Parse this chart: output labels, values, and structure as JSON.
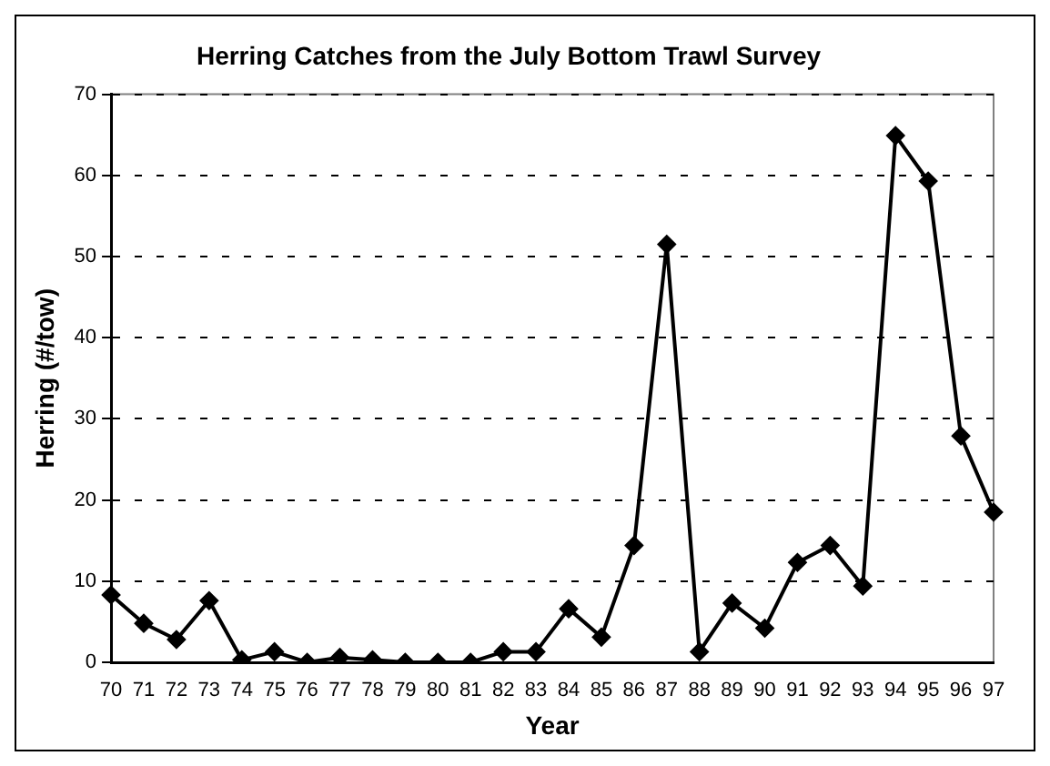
{
  "chart_data": {
    "type": "line",
    "title": "Herring Catches from the July Bottom Trawl Survey",
    "xlabel": "Year",
    "ylabel": "Herring (#/tow)",
    "categories": [
      "70",
      "71",
      "72",
      "73",
      "74",
      "75",
      "76",
      "77",
      "78",
      "79",
      "80",
      "81",
      "82",
      "83",
      "84",
      "85",
      "86",
      "87",
      "88",
      "89",
      "90",
      "91",
      "92",
      "93",
      "94",
      "95",
      "96",
      "97"
    ],
    "series": [
      {
        "color": "#000000",
        "values": [
          8.3,
          4.8,
          2.8,
          7.6,
          0.3,
          1.3,
          0,
          0.6,
          0.3,
          0,
          0,
          0,
          1.3,
          1.3,
          6.6,
          3.1,
          14.4,
          51.5,
          1.3,
          7.3,
          4.2,
          12.3,
          14.4,
          9.4,
          64.9,
          59.3,
          27.9,
          18.5
        ]
      }
    ],
    "ylim": [
      0,
      70
    ],
    "yticks": [
      0,
      10,
      20,
      30,
      40,
      50,
      60,
      70
    ],
    "grid": "y",
    "legend": false,
    "marker": "diamond",
    "line_style": "solid"
  }
}
